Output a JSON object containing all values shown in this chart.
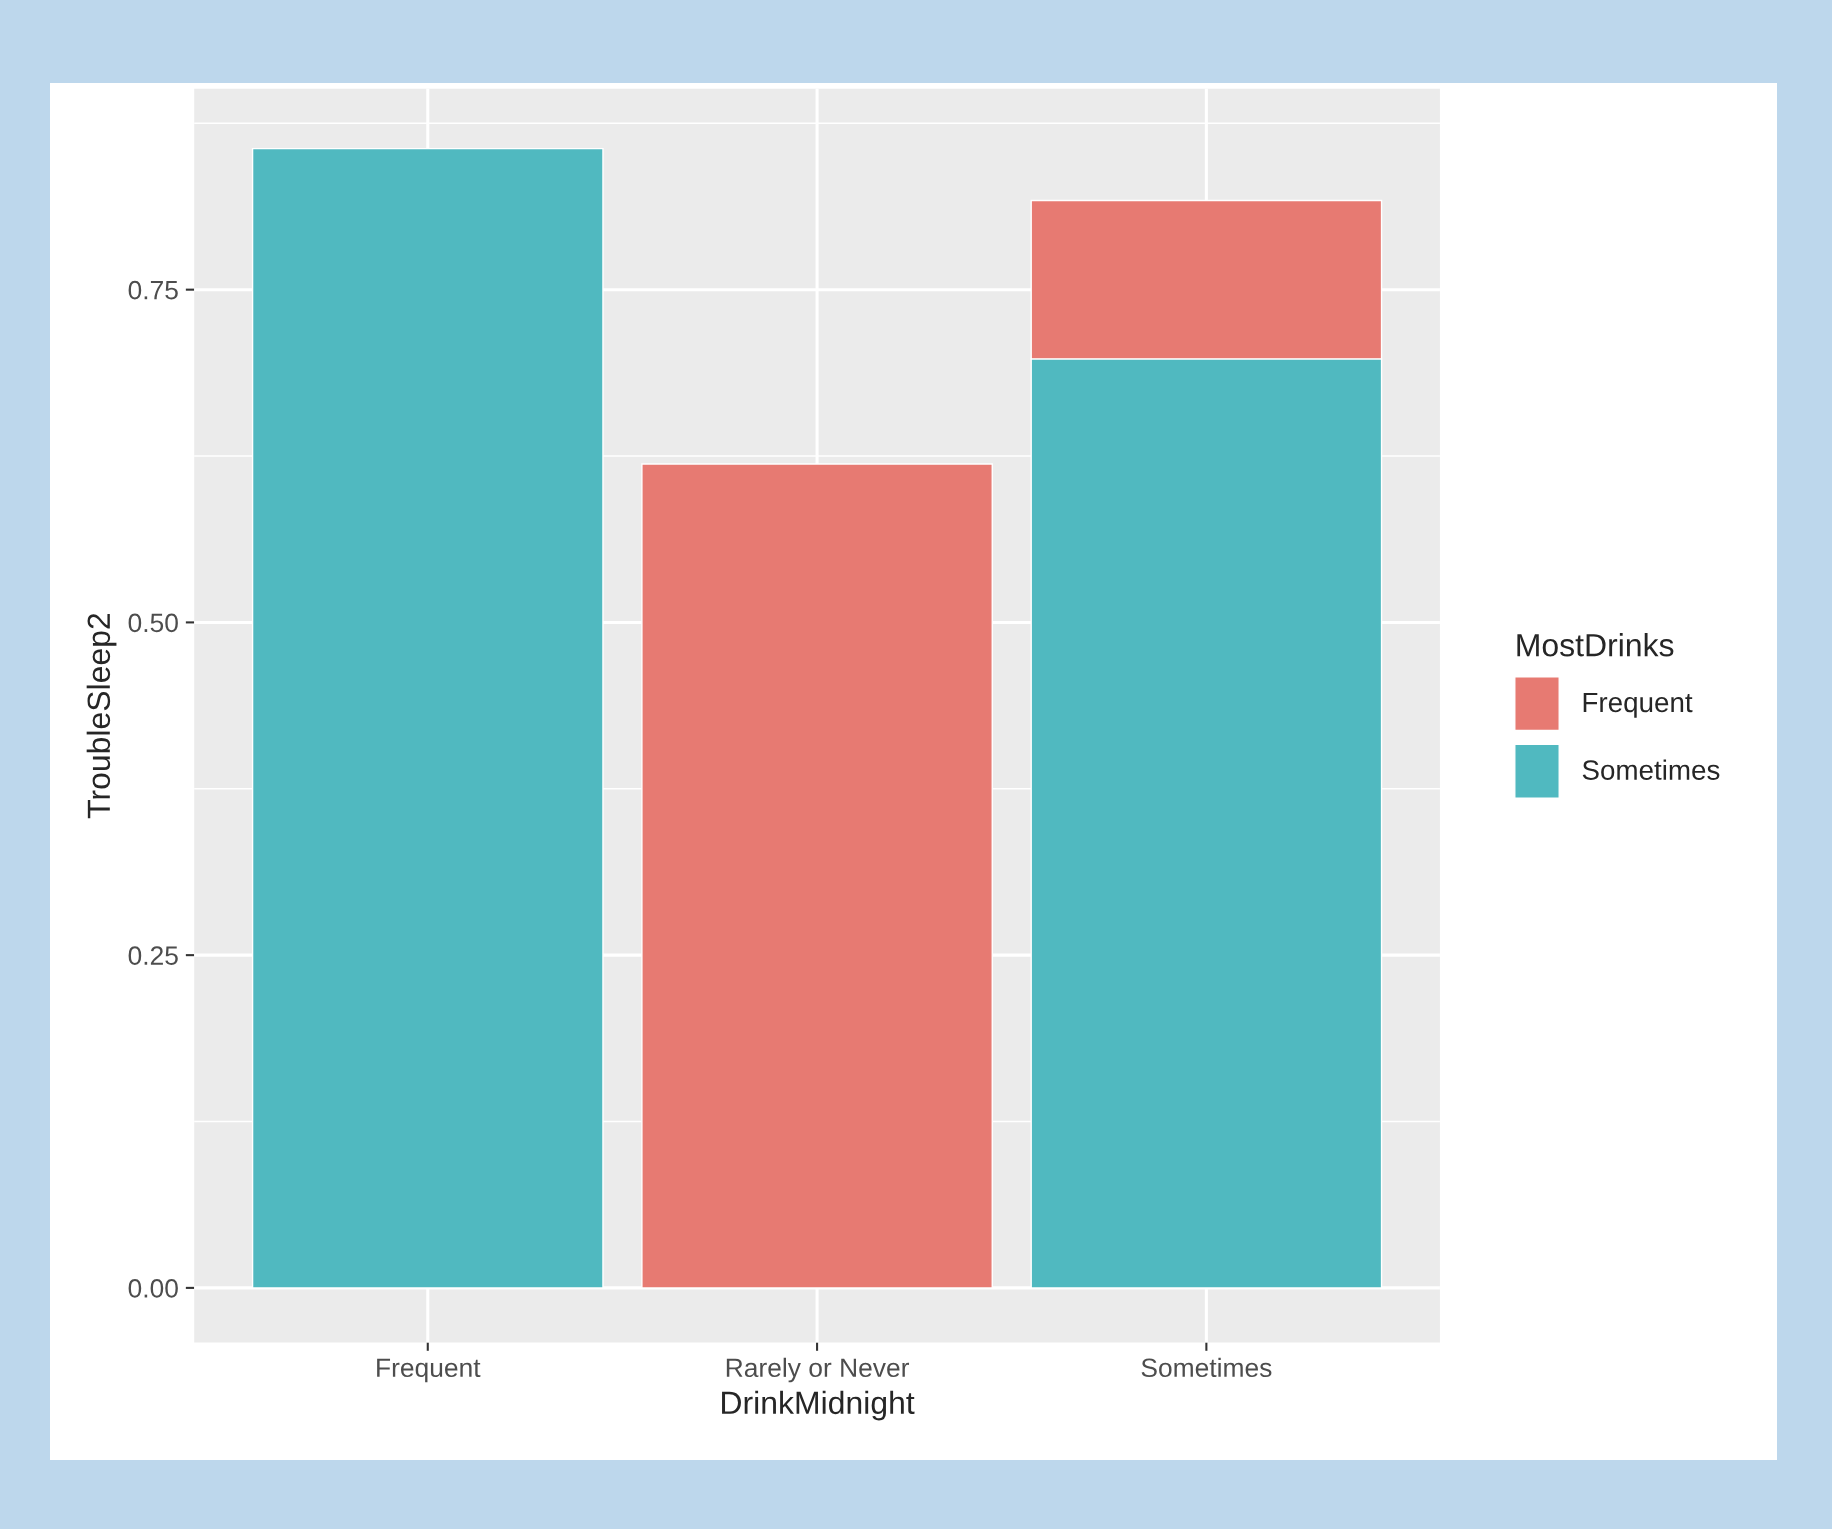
{
  "chart_data": {
    "type": "bar",
    "stacked": true,
    "xlabel": "DrinkMidnight",
    "ylabel": "TroubleSleep2",
    "legend_title": "MostDrinks",
    "categories": [
      "Frequent",
      "Rarely or Never",
      "Sometimes"
    ],
    "series": [
      {
        "name": "Sometimes",
        "color": "#50b9c0",
        "values": [
          0.856,
          null,
          0.698
        ]
      },
      {
        "name": "Frequent",
        "color": "#e77a72",
        "values": [
          null,
          0.619,
          0.119
        ]
      }
    ],
    "ylim": [
      -0.041,
      0.901
    ],
    "yticks": [
      {
        "value": 0,
        "label": "0.00"
      },
      {
        "value": 0.25,
        "label": "0.25"
      },
      {
        "value": 0.5,
        "label": "0.50"
      },
      {
        "value": 0.75,
        "label": "0.75"
      }
    ],
    "grid": true,
    "legend": "right"
  }
}
